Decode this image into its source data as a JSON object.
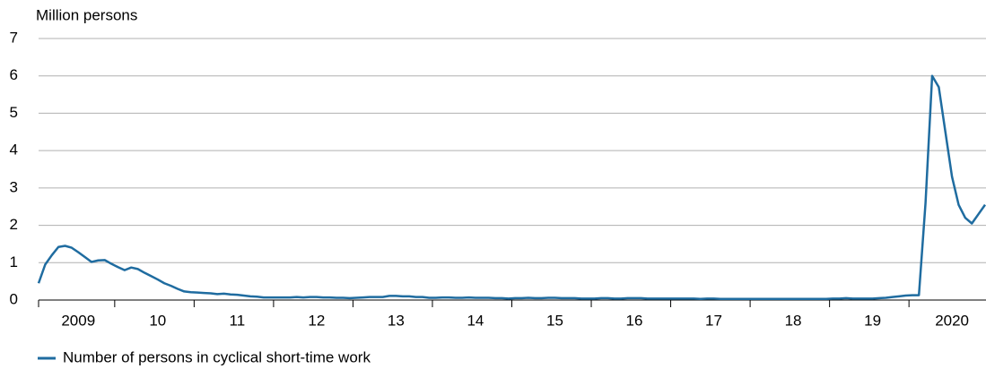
{
  "chart_data": {
    "type": "line",
    "y_label": "Million persons",
    "categories": [
      null,
      null,
      null,
      null,
      null,
      null,
      "2009",
      null,
      null,
      null,
      null,
      null,
      null,
      null,
      null,
      null,
      null,
      null,
      "10",
      null,
      null,
      null,
      null,
      null,
      null,
      null,
      null,
      null,
      null,
      null,
      "11",
      null,
      null,
      null,
      null,
      null,
      null,
      null,
      null,
      null,
      null,
      null,
      "12",
      null,
      null,
      null,
      null,
      null,
      null,
      null,
      null,
      null,
      null,
      null,
      "13",
      null,
      null,
      null,
      null,
      null,
      null,
      null,
      null,
      null,
      null,
      null,
      "14",
      null,
      null,
      null,
      null,
      null,
      null,
      null,
      null,
      null,
      null,
      null,
      "15",
      null,
      null,
      null,
      null,
      null,
      null,
      null,
      null,
      null,
      null,
      null,
      "16",
      null,
      null,
      null,
      null,
      null,
      null,
      null,
      null,
      null,
      null,
      null,
      "17",
      null,
      null,
      null,
      null,
      null,
      null,
      null,
      null,
      null,
      null,
      null,
      "18",
      null,
      null,
      null,
      null,
      null,
      null,
      null,
      null,
      null,
      null,
      null,
      "19",
      null,
      null,
      null,
      null,
      null,
      null,
      null,
      null,
      null,
      null,
      null,
      "2020",
      null,
      null,
      null,
      null,
      null
    ],
    "series": [
      {
        "name": "Number of persons in cyclical short-time work",
        "color": "#1f6ca0",
        "values": [
          0.45,
          0.95,
          1.2,
          1.42,
          1.45,
          1.4,
          1.28,
          1.15,
          1.02,
          1.06,
          1.07,
          0.97,
          0.88,
          0.8,
          0.87,
          0.83,
          0.73,
          0.64,
          0.55,
          0.45,
          0.38,
          0.3,
          0.23,
          0.21,
          0.2,
          0.19,
          0.18,
          0.16,
          0.17,
          0.15,
          0.14,
          0.12,
          0.1,
          0.09,
          0.07,
          0.07,
          0.07,
          0.07,
          0.07,
          0.08,
          0.07,
          0.08,
          0.08,
          0.07,
          0.07,
          0.06,
          0.06,
          0.05,
          0.06,
          0.07,
          0.08,
          0.08,
          0.08,
          0.11,
          0.11,
          0.1,
          0.1,
          0.08,
          0.08,
          0.06,
          0.06,
          0.07,
          0.07,
          0.06,
          0.06,
          0.07,
          0.06,
          0.06,
          0.06,
          0.05,
          0.05,
          0.04,
          0.05,
          0.05,
          0.06,
          0.05,
          0.05,
          0.06,
          0.06,
          0.05,
          0.05,
          0.05,
          0.04,
          0.04,
          0.04,
          0.05,
          0.05,
          0.04,
          0.04,
          0.05,
          0.05,
          0.05,
          0.04,
          0.04,
          0.04,
          0.04,
          0.04,
          0.04,
          0.04,
          0.04,
          0.03,
          0.04,
          0.04,
          0.03,
          0.03,
          0.03,
          0.03,
          0.03,
          0.03,
          0.03,
          0.03,
          0.03,
          0.03,
          0.03,
          0.03,
          0.03,
          0.03,
          0.03,
          0.03,
          0.03,
          0.04,
          0.04,
          0.05,
          0.04,
          0.04,
          0.04,
          0.04,
          0.05,
          0.06,
          0.08,
          0.1,
          0.12,
          0.13,
          0.13,
          2.6,
          6.0,
          5.7,
          4.5,
          3.3,
          2.55,
          2.2,
          2.05,
          2.3,
          2.55
        ]
      }
    ],
    "ylim": [
      0,
      7
    ],
    "yticks": [
      0,
      1,
      2,
      3,
      4,
      5,
      6,
      7
    ],
    "grid": true,
    "legend": "bottom-left"
  }
}
